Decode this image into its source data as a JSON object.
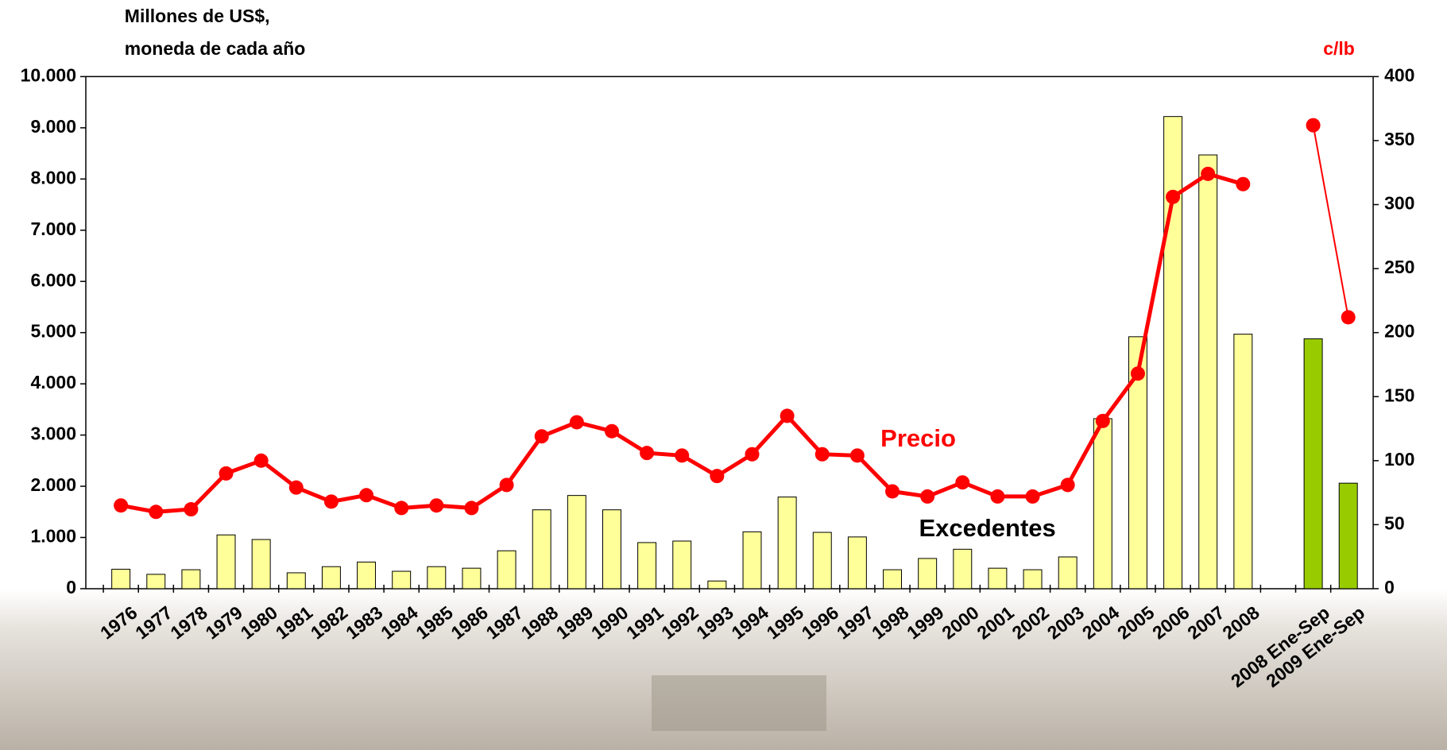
{
  "chart_data": {
    "type": "bar_line",
    "y_title_lines": [
      "Millones de US$,",
      "moneda de cada año"
    ],
    "y2_title": "c/lb",
    "annotations": [
      {
        "text": "Precio",
        "color": "#ff0000"
      },
      {
        "text": "Excedentes",
        "color": "#000000"
      }
    ],
    "categories": [
      "1976",
      "1977",
      "1978",
      "1979",
      "1980",
      "1981",
      "1982",
      "1983",
      "1984",
      "1985",
      "1986",
      "1987",
      "1988",
      "1989",
      "1990",
      "1991",
      "1992",
      "1993",
      "1994",
      "1995",
      "1996",
      "1997",
      "1998",
      "1999",
      "2000",
      "2001",
      "2002",
      "2003",
      "2004",
      "2005",
      "2006",
      "2007",
      "2008",
      null,
      "2008 Ene-Sep",
      "2009 Ene-Sep"
    ],
    "series": [
      {
        "name": "Excedentes",
        "type": "bar",
        "axis": "y",
        "colors": [
          "#ffff99",
          "#ffff99",
          "#ffff99",
          "#ffff99",
          "#ffff99",
          "#ffff99",
          "#ffff99",
          "#ffff99",
          "#ffff99",
          "#ffff99",
          "#ffff99",
          "#ffff99",
          "#ffff99",
          "#ffff99",
          "#ffff99",
          "#ffff99",
          "#ffff99",
          "#ffff99",
          "#ffff99",
          "#ffff99",
          "#ffff99",
          "#ffff99",
          "#ffff99",
          "#ffff99",
          "#ffff99",
          "#ffff99",
          "#ffff99",
          "#ffff99",
          "#ffff99",
          "#ffff99",
          "#ffff99",
          "#ffff99",
          "#ffff99",
          null,
          "#99cc00",
          "#99cc00"
        ],
        "values": [
          380,
          280,
          370,
          1050,
          960,
          310,
          430,
          520,
          340,
          430,
          400,
          740,
          1540,
          1820,
          1540,
          900,
          930,
          150,
          1110,
          1790,
          1100,
          1010,
          370,
          590,
          770,
          400,
          370,
          620,
          3320,
          4920,
          9220,
          8470,
          4970,
          null,
          4880,
          2060
        ]
      },
      {
        "name": "Precio",
        "type": "line",
        "axis": "y2",
        "color": "#ff0000",
        "values": [
          65,
          60,
          62,
          90,
          100,
          79,
          68,
          73,
          63,
          65,
          63,
          81,
          119,
          130,
          123,
          106,
          104,
          88,
          105,
          135,
          105,
          104,
          76,
          72,
          83,
          72,
          72,
          81,
          131,
          168,
          306,
          324,
          316,
          null,
          362,
          212
        ]
      }
    ],
    "ylim": [
      0,
      10000
    ],
    "yticks": [
      0,
      {
        "value": 1000,
        "label": "1.000"
      },
      {
        "value": 2000,
        "label": "2.000"
      },
      {
        "value": 3000,
        "label": "3.000"
      },
      {
        "value": 4000,
        "label": "4.000"
      },
      {
        "value": 5000,
        "label": "5.000"
      },
      {
        "value": 6000,
        "label": "6.000"
      },
      {
        "value": 7000,
        "label": "7.000"
      },
      {
        "value": 8000,
        "label": "8.000"
      },
      {
        "value": 9000,
        "label": "9.000"
      },
      {
        "value": 10000,
        "label": "10.000"
      }
    ],
    "y2lim": [
      0,
      400
    ],
    "y2ticks": [
      0,
      50,
      100,
      150,
      200,
      250,
      300,
      350,
      400
    ]
  }
}
